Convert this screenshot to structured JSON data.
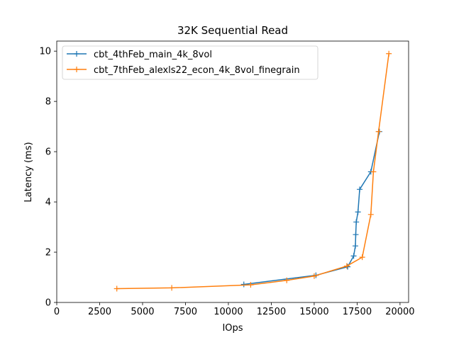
{
  "chart_data": {
    "type": "line",
    "title": "32K  Sequential Read",
    "xlabel": "IOps",
    "ylabel": "Latency (ms)",
    "xlim": [
      0,
      20500
    ],
    "ylim": [
      0,
      10.4
    ],
    "xticks": [
      0,
      2500,
      5000,
      7500,
      10000,
      12500,
      15000,
      17500,
      20000
    ],
    "yticks": [
      0,
      2,
      4,
      6,
      8,
      10
    ],
    "xtick_labels": [
      "0",
      "2500",
      "5000",
      "7500",
      "10000",
      "12500",
      "15000",
      "17500",
      "20000"
    ],
    "ytick_labels": [
      "0",
      "2",
      "4",
      "6",
      "8",
      "10"
    ],
    "grid": false,
    "legend_position": "top-left",
    "marker": "+",
    "series": [
      {
        "name": "cbt_4thFeb_main_4k_8vol",
        "color": "#1f77b4",
        "x": [
          10900,
          15100,
          16950,
          17300,
          17400,
          17420,
          17450,
          17550,
          17650,
          18300,
          18800
        ],
        "y": [
          0.72,
          1.08,
          1.42,
          1.85,
          2.25,
          2.7,
          3.2,
          3.6,
          4.5,
          5.2,
          6.8
        ]
      },
      {
        "name": "cbt_7thFeb_alexls22_econ_4k_8vol_finegrain",
        "color": "#ff7f0e",
        "x": [
          3500,
          6700,
          11300,
          13400,
          15000,
          16900,
          17800,
          18300,
          18450,
          18750,
          19350
        ],
        "y": [
          0.55,
          0.58,
          0.7,
          0.88,
          1.05,
          1.45,
          1.8,
          3.5,
          5.2,
          6.8,
          9.9
        ]
      }
    ]
  }
}
